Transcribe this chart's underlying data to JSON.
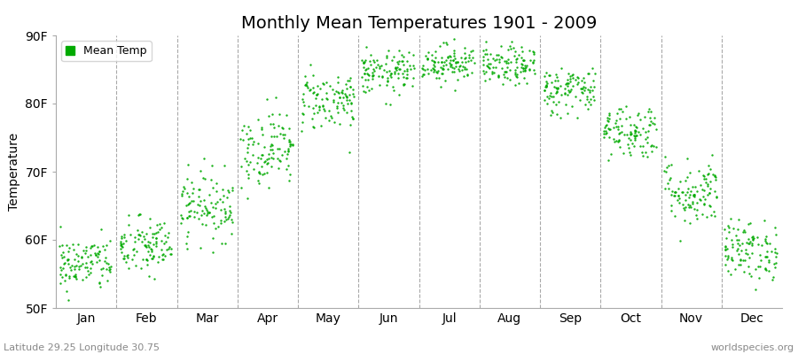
{
  "title": "Monthly Mean Temperatures 1901 - 2009",
  "ylabel": "Temperature",
  "xlabel_bottom_left": "Latitude 29.25 Longitude 30.75",
  "xlabel_bottom_right": "worldspecies.org",
  "legend_label": "Mean Temp",
  "dot_color": "#00aa00",
  "background_color": "#ffffff",
  "plot_bg_color": "#ffffff",
  "ylim": [
    50,
    90
  ],
  "yticks": [
    50,
    60,
    70,
    80,
    90
  ],
  "ytick_labels": [
    "50F",
    "60F",
    "70F",
    "80F",
    "90F"
  ],
  "months": [
    "Jan",
    "Feb",
    "Mar",
    "Apr",
    "May",
    "Jun",
    "Jul",
    "Aug",
    "Sep",
    "Oct",
    "Nov",
    "Dec"
  ],
  "monthly_mean_F": [
    56.5,
    59.0,
    65.0,
    73.5,
    80.5,
    84.5,
    86.0,
    85.5,
    82.0,
    76.0,
    67.0,
    58.5
  ],
  "monthly_std_F": [
    2.0,
    2.2,
    2.5,
    2.8,
    2.2,
    1.6,
    1.4,
    1.4,
    1.8,
    2.0,
    2.5,
    2.2
  ],
  "n_years": 109,
  "seed": 42,
  "dot_size": 3,
  "dot_alpha": 0.9,
  "title_fontsize": 14,
  "axis_fontsize": 10,
  "tick_fontsize": 10,
  "legend_fontsize": 9,
  "annotation_fontsize": 8,
  "vline_color": "#555555",
  "vline_alpha": 0.5,
  "vline_lw": 0.8
}
